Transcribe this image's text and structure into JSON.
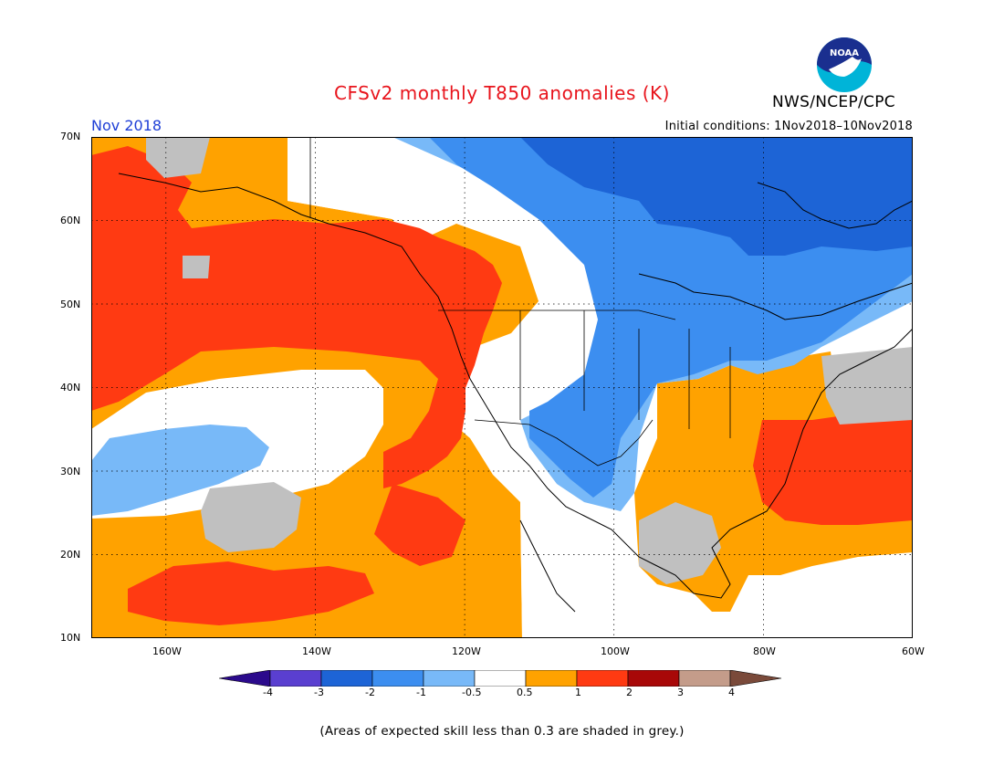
{
  "title": "CFSv2 monthly T850 anomalies (K)",
  "agency": "NWS/NCEP/CPC",
  "logo_text": "NOAA",
  "month": "Nov 2018",
  "initial_conditions": "Initial conditions: 1Nov2018–10Nov2018",
  "footnote": "(Areas of expected skill less than 0.3 are shaded in grey.)",
  "map": {
    "lat_range": [
      10,
      70
    ],
    "lon_range": [
      -170,
      -60
    ],
    "lat_labels": [
      "70N",
      "60N",
      "50N",
      "40N",
      "30N",
      "20N",
      "10N"
    ],
    "lon_labels": [
      "160W",
      "140W",
      "120W",
      "100W",
      "80W",
      "60W"
    ],
    "grid": "dotted"
  },
  "colorbar": {
    "labels": [
      "-4",
      "-3",
      "-2",
      "-1",
      "-0.5",
      "0.5",
      "1",
      "2",
      "3",
      "4"
    ],
    "colors": [
      "#2b0a8c",
      "#5a3fd0",
      "#1d64d6",
      "#3c8ef0",
      "#78b9f8",
      "#ffffff",
      "#ffa200",
      "#ff3a12",
      "#a80808",
      "#c49c8a",
      "#7a4a3a"
    ]
  },
  "legend_colors": {
    "low_skill": "#c0c0c0"
  }
}
